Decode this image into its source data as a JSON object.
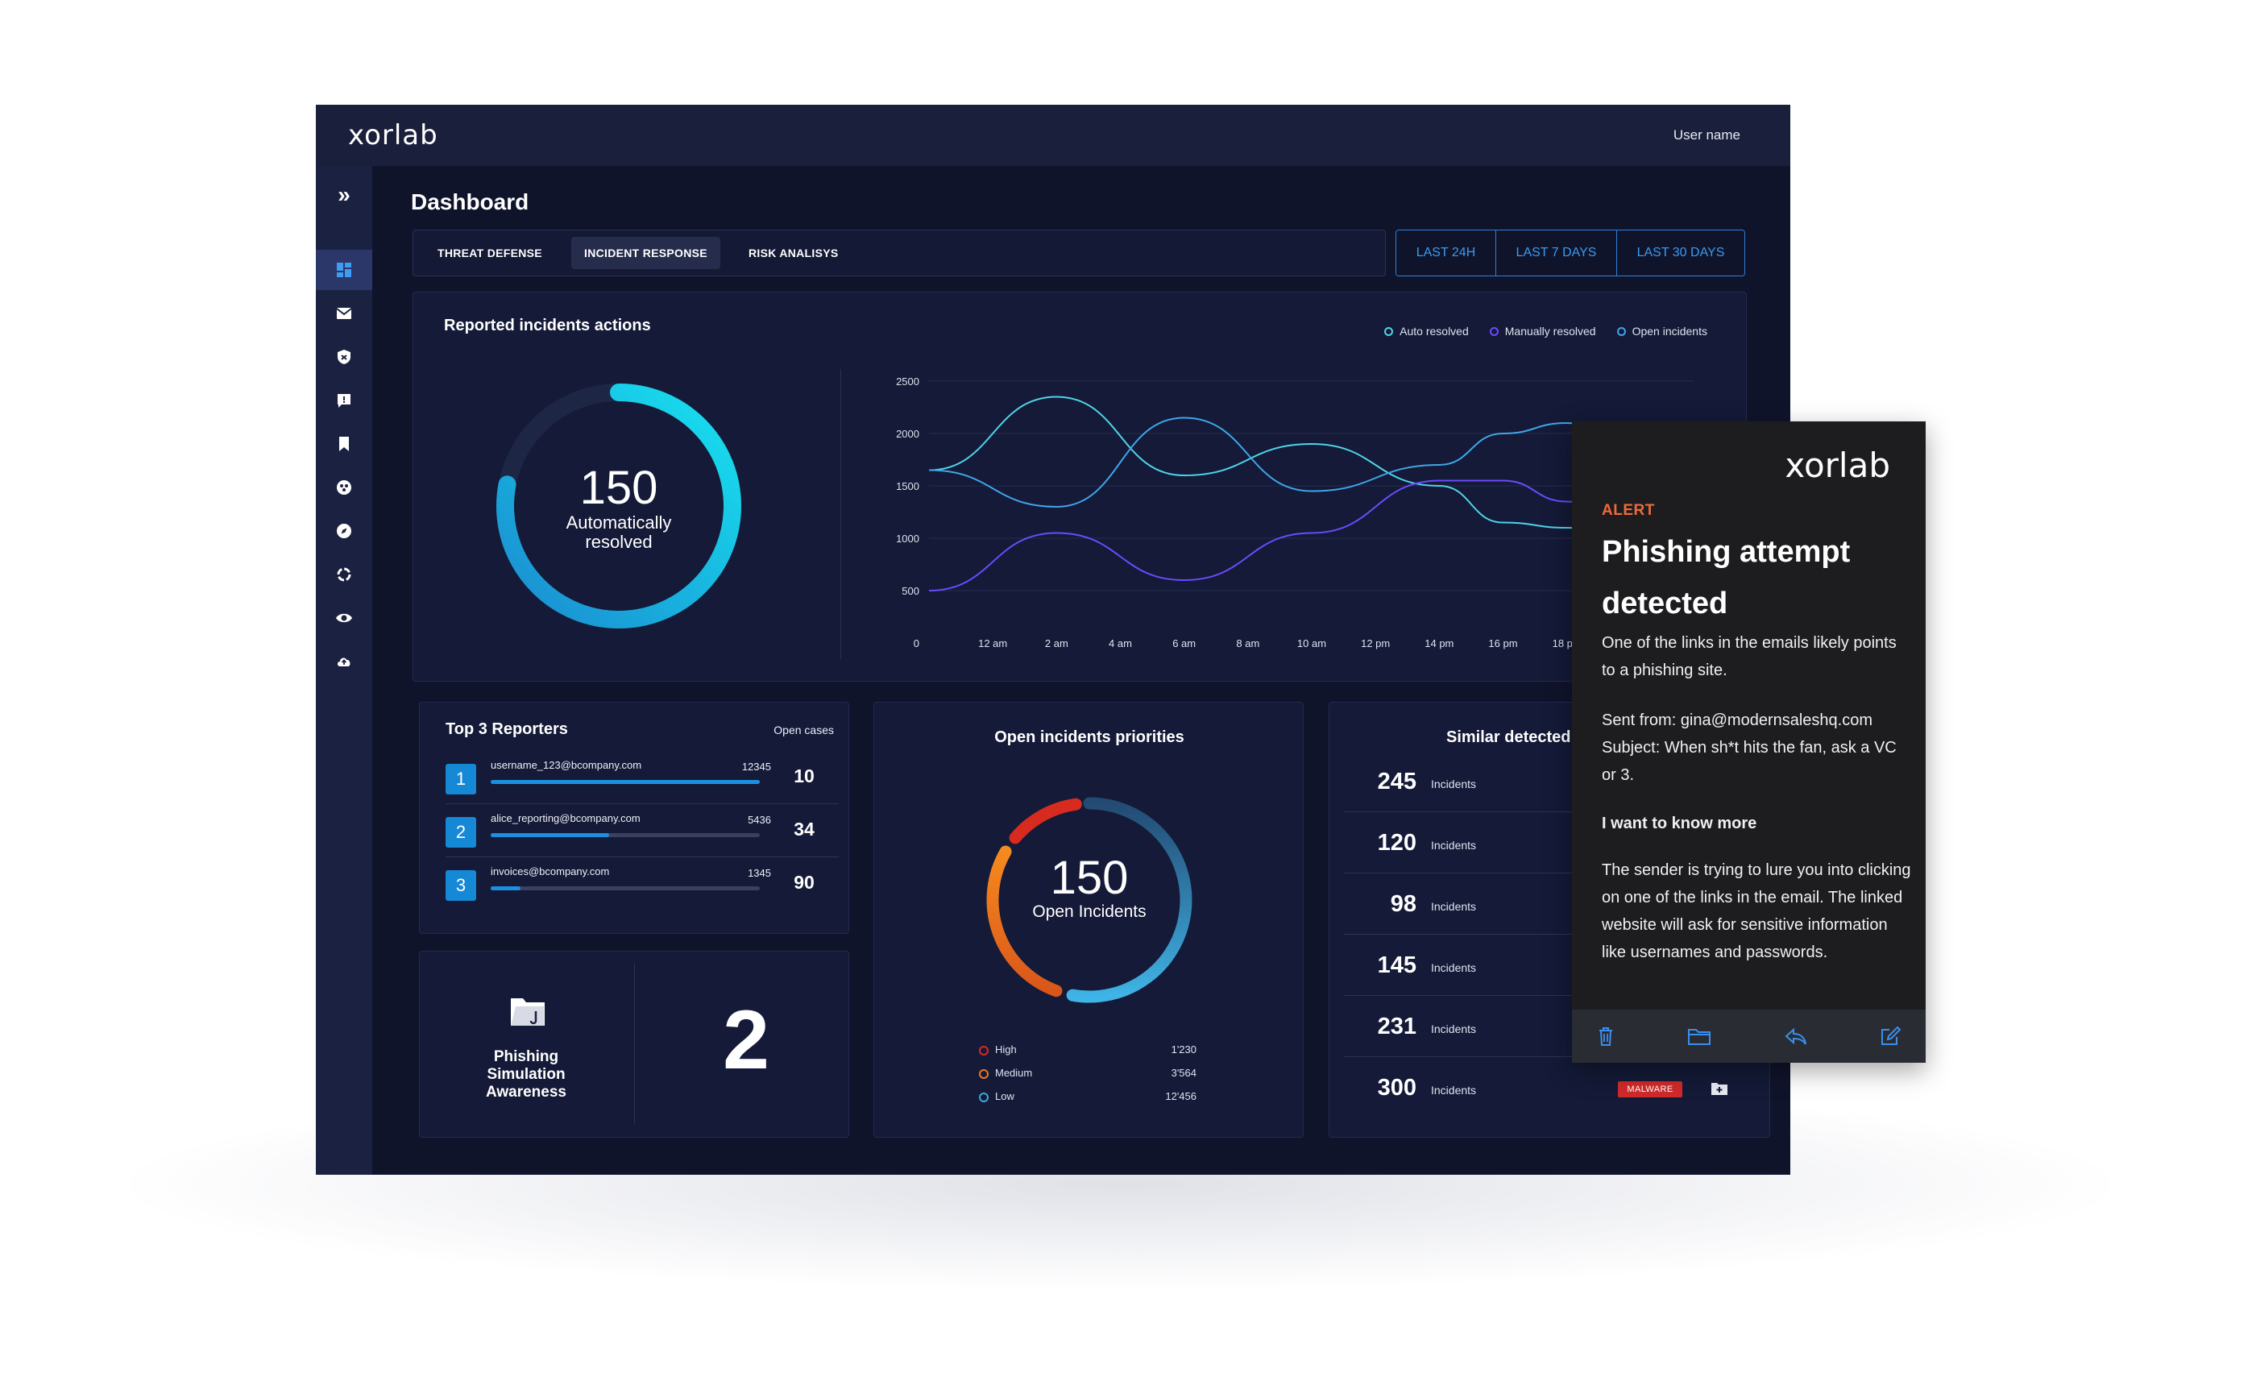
{
  "brand": "xorlab",
  "user": "User name",
  "page_title": "Dashboard",
  "tabs": [
    "THREAT DEFENSE",
    "INCIDENT RESPONSE",
    "RISK ANALISYS"
  ],
  "active_tab": "INCIDENT RESPONSE",
  "time_ranges": [
    "LAST 24H",
    "LAST 7 DAYS",
    "LAST 30 DAYS"
  ],
  "sidebar_icons": [
    "expand-icon",
    "dashboard-icon",
    "mail-icon",
    "shield-icon",
    "report-icon",
    "bookmark-icon",
    "biohazard-icon",
    "compass-icon",
    "loading-icon",
    "eye-icon",
    "cloud-upload-icon"
  ],
  "reported": {
    "title": "Reported incidents actions",
    "ring_value": "150",
    "ring_label_1": "Automatically",
    "ring_label_2": "resolved",
    "ring_fraction": 0.78,
    "legend": [
      {
        "name": "Auto resolved",
        "color": "#4fd4e8"
      },
      {
        "name": "Manually resolved",
        "color": "#6a4bff"
      },
      {
        "name": "Open incidents",
        "color": "#3fa6e8"
      }
    ]
  },
  "chart_data": {
    "type": "line",
    "title": "Reported incidents actions",
    "x": [
      "12 am",
      "2 am",
      "4 am",
      "6 am",
      "8 am",
      "10 am",
      "12 pm",
      "14 pm",
      "16 pm",
      "18 pm"
    ],
    "y_ticks": [
      "0",
      "500",
      "1000",
      "1500",
      "2000",
      "2500"
    ],
    "ylim": [
      0,
      2500
    ],
    "series": [
      {
        "name": "Auto resolved",
        "color": "#4fd4e8",
        "x": [
          -2,
          2,
          6,
          10,
          14,
          16,
          18,
          20
        ],
        "values": [
          1650,
          2350,
          1600,
          1900,
          1500,
          1150,
          1100,
          1050
        ]
      },
      {
        "name": "Manually resolved",
        "color": "#6a4bff",
        "x": [
          -2,
          2,
          6,
          10,
          14,
          16,
          18,
          20
        ],
        "values": [
          500,
          1050,
          600,
          1050,
          1550,
          1550,
          1350,
          1150
        ]
      },
      {
        "name": "Open incidents",
        "color": "#3fa6e8",
        "x": [
          -2,
          2,
          6,
          10,
          14,
          16,
          18,
          20
        ],
        "values": [
          1650,
          1300,
          2150,
          1450,
          1700,
          2000,
          2100,
          1900
        ]
      }
    ]
  },
  "top_reporters": {
    "title": "Top 3 Reporters",
    "col_label": "Open cases",
    "rows": [
      {
        "rank": "1",
        "email": "username_123@bcompany.com",
        "count": "12345",
        "open": "10",
        "fill": 1.0
      },
      {
        "rank": "2",
        "email": "alice_reporting@bcompany.com",
        "count": "5436",
        "open": "34",
        "fill": 0.44
      },
      {
        "rank": "3",
        "email": "invoices@bcompany.com",
        "count": "1345",
        "open": "90",
        "fill": 0.11
      }
    ]
  },
  "phishing": {
    "label_1": "Phishing",
    "label_2": "Simulation",
    "label_3": "Awareness",
    "value": "2"
  },
  "priorities": {
    "title": "Open incidents priorities",
    "value": "150",
    "label": "Open Incidents",
    "items": [
      {
        "name": "High",
        "value": "1'230",
        "color": "#d72b1f"
      },
      {
        "name": "Medium",
        "value": "3'564",
        "color": "#f07a1a"
      },
      {
        "name": "Low",
        "value": "12'456",
        "color": "#3ba8e0"
      }
    ]
  },
  "similar": {
    "title": "Similar detected in",
    "rows": [
      {
        "num": "245",
        "label": "Incidents"
      },
      {
        "num": "120",
        "label": "Incidents"
      },
      {
        "num": "98",
        "label": "Incidents"
      },
      {
        "num": "145",
        "label": "Incidents"
      },
      {
        "num": "231",
        "label": "Incidents"
      },
      {
        "num": "300",
        "label": "Incidents",
        "badge": "MALWARE"
      }
    ]
  },
  "alert": {
    "logo": "xorlab",
    "tag": "ALERT",
    "heading": "Phishing attempt detected",
    "p1": "One of the links in the emails likely points to a phishing site.",
    "p2": "Sent from: gina@modernsaleshq.com",
    "p3": "Subject: When sh*t hits the fan, ask a VC or 3.",
    "p4": "I want to know more",
    "p5": "The sender is trying to lure you into clicking on one of the links in the email. The linked website will ask for sensitive information like usernames and passwords.",
    "actions": [
      "trash-icon",
      "folder-icon",
      "reply-icon",
      "compose-icon"
    ]
  }
}
